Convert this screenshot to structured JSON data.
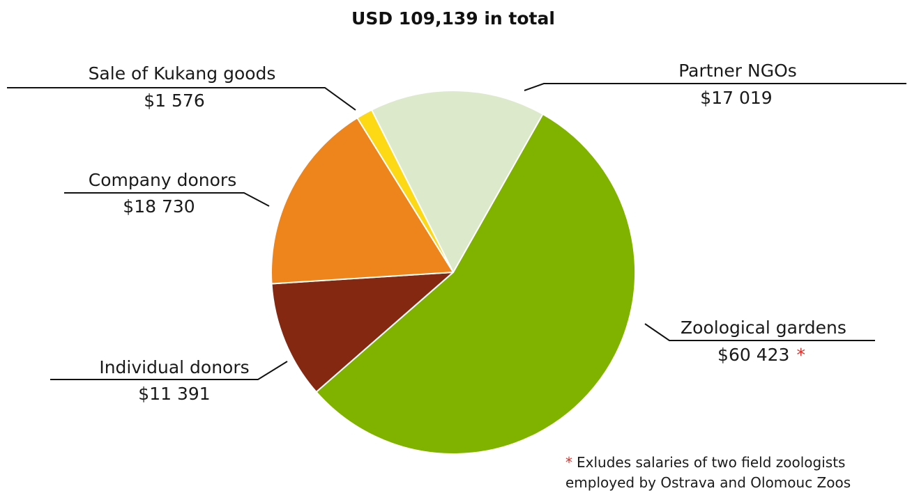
{
  "chart_data": {
    "type": "pie",
    "title": "USD 109,139 in total",
    "slices": [
      {
        "label": "Zoological gardens",
        "value_label": "$60 423",
        "value": 60423,
        "color": "#80b200",
        "marker": "*"
      },
      {
        "label": "Individual donors",
        "value_label": "$11 391",
        "value": 11391,
        "color": "#842812"
      },
      {
        "label": "Company donors",
        "value_label": "$18 730",
        "value": 18730,
        "color": "#ee841c"
      },
      {
        "label": "Sale of Kukang goods",
        "value_label": "$1 576",
        "value": 1576,
        "color": "#fcd815"
      },
      {
        "label": "Partner NGOs",
        "value_label": "$17 019",
        "value": 17019,
        "color": "#dde9cb"
      }
    ],
    "footnote": {
      "marker": "*",
      "lines": [
        "Exludes salaries of two field zoologists",
        "employed by Ostrava and Olomouc Zoos"
      ]
    }
  }
}
